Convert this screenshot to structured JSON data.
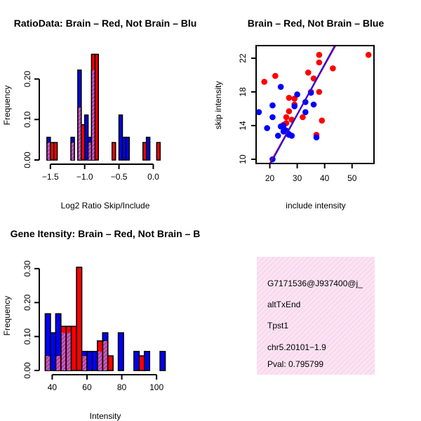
{
  "colors": {
    "red": "#ff0000",
    "blue": "#0000ff",
    "purple": "#9a1fc0",
    "line": "#5a18c8",
    "info_bg": "#f8dcf0",
    "pval": "#aa0000"
  },
  "chart_data": [
    {
      "type": "bar",
      "title": "RatioData: Brain – Red, Not Brain – Blu",
      "xlabel": "Log2 Ratio Skip/Include",
      "ylabel": "Frequency",
      "xlim": [
        -1.6,
        0.2
      ],
      "ylim": [
        0,
        0.26
      ],
      "xticks": [
        -1.5,
        -1.0,
        -0.5,
        0.0
      ],
      "xtick_labels": [
        "−1.5",
        "−1.0",
        "−0.5",
        "0.0"
      ],
      "yticks": [
        0.0,
        0.1,
        0.2
      ],
      "ytick_labels": [
        "0.00",
        "0.10",
        "0.20"
      ],
      "bin_width": 0.05,
      "series": [
        {
          "name": "Not Brain",
          "color": "blue",
          "bins": [
            [
              -1.55,
              0.056
            ],
            [
              -1.2,
              0.056
            ],
            [
              -1.1,
              0.222
            ],
            [
              -1.0,
              0.111
            ],
            [
              -0.95,
              0.056
            ],
            [
              -0.9,
              0.222
            ],
            [
              -0.5,
              0.111
            ],
            [
              -0.45,
              0.056
            ],
            [
              -0.4,
              0.056
            ],
            [
              -0.1,
              0.056
            ]
          ]
        },
        {
          "name": "Brain",
          "color": "red",
          "bins": [
            [
              -1.55,
              0.043
            ],
            [
              -1.5,
              0.043
            ],
            [
              -1.45,
              0.043
            ],
            [
              -1.2,
              0.043
            ],
            [
              -1.1,
              0.13
            ],
            [
              -1.05,
              0.087
            ],
            [
              -0.95,
              0.043
            ],
            [
              -0.9,
              0.261
            ],
            [
              -0.85,
              0.261
            ],
            [
              -0.6,
              0.043
            ],
            [
              -0.15,
              0.043
            ],
            [
              0.05,
              0.043
            ]
          ]
        }
      ]
    },
    {
      "type": "scatter",
      "title": "Brain – Red, Not Brain – Blue",
      "xlabel": "include intensity",
      "ylabel": "skip intensity",
      "xlim": [
        15,
        58
      ],
      "ylim": [
        9.5,
        23.5
      ],
      "xticks": [
        20,
        30,
        40,
        50
      ],
      "yticks": [
        10,
        14,
        18,
        22
      ],
      "series": [
        {
          "name": "Brain",
          "color": "red",
          "points": [
            [
              18,
              19.2
            ],
            [
              22,
              19.9
            ],
            [
              25,
              14.1
            ],
            [
              25,
              13.7
            ],
            [
              26,
              15.0
            ],
            [
              26,
              14.3
            ],
            [
              27,
              15.7
            ],
            [
              27,
              17.3
            ],
            [
              28,
              14.7
            ],
            [
              29,
              17.2
            ],
            [
              29,
              16.5
            ],
            [
              32,
              15.0
            ],
            [
              34,
              20.3
            ],
            [
              35,
              18.0
            ],
            [
              36,
              19.6
            ],
            [
              37,
              12.9
            ],
            [
              38,
              22.4
            ],
            [
              38,
              21.5
            ],
            [
              38,
              18.0
            ],
            [
              39,
              14.6
            ],
            [
              43,
              20.8
            ],
            [
              56,
              22.4
            ]
          ]
        },
        {
          "name": "Not Brain",
          "color": "blue",
          "points": [
            [
              16,
              15.6
            ],
            [
              19,
              13.7
            ],
            [
              21,
              10.0
            ],
            [
              21,
              16.4
            ],
            [
              21,
              15.0
            ],
            [
              23,
              12.8
            ],
            [
              24,
              18.6
            ],
            [
              24,
              13.9
            ],
            [
              25,
              13.3
            ],
            [
              25,
              14.0
            ],
            [
              26,
              13.4
            ],
            [
              27,
              13.0
            ],
            [
              27,
              12.9
            ],
            [
              28,
              12.8
            ],
            [
              29,
              16.3
            ],
            [
              30,
              17.7
            ],
            [
              33,
              15.6
            ],
            [
              33,
              16.8
            ],
            [
              35,
              17.9
            ],
            [
              36,
              16.5
            ],
            [
              37,
              12.6
            ]
          ]
        }
      ],
      "fit_lines": [
        {
          "name": "Brain",
          "color": "red",
          "from": [
            20,
            9.5
          ],
          "to": [
            44,
            23.5
          ]
        },
        {
          "name": "Not Brain",
          "color": "blue",
          "from": [
            20.3,
            9.5
          ],
          "to": [
            43.7,
            23.5
          ]
        }
      ]
    },
    {
      "type": "bar",
      "title": "Gene Itensity: Brain – Red, Not Brain – B",
      "xlabel": "Intensity",
      "ylabel": "Frequency",
      "xlim": [
        35,
        106
      ],
      "ylim": [
        0,
        0.31
      ],
      "xticks": [
        40,
        60,
        80,
        100
      ],
      "yticks": [
        0.0,
        0.1,
        0.2,
        0.3
      ],
      "ytick_labels": [
        "0.00",
        "0.10",
        "0.20",
        "0.30"
      ],
      "bin_width": 3,
      "series": [
        {
          "name": "Not Brain",
          "color": "blue",
          "bins": [
            [
              36,
              0.167
            ],
            [
              39,
              0.111
            ],
            [
              42,
              0.167
            ],
            [
              45,
              0.111
            ],
            [
              48,
              0.111
            ],
            [
              57,
              0.056
            ],
            [
              60,
              0.056
            ],
            [
              63,
              0.056
            ],
            [
              66,
              0.056
            ],
            [
              69,
              0.111
            ],
            [
              78,
              0.111
            ],
            [
              87,
              0.056
            ],
            [
              93,
              0.056
            ],
            [
              102,
              0.056
            ]
          ]
        },
        {
          "name": "Brain",
          "color": "red",
          "bins": [
            [
              36,
              0.043
            ],
            [
              42,
              0.043
            ],
            [
              45,
              0.13
            ],
            [
              48,
              0.13
            ],
            [
              51,
              0.13
            ],
            [
              54,
              0.304
            ],
            [
              57,
              0.043
            ],
            [
              66,
              0.087
            ],
            [
              69,
              0.087
            ],
            [
              72,
              0.043
            ],
            [
              90,
              0.043
            ]
          ]
        }
      ]
    }
  ],
  "info": {
    "id": "G7171536@J937400@j_",
    "event": "altTxEnd",
    "gene": "Tpst1",
    "location": "chr5.20101−1.9",
    "pval": "Pval: 0.795799"
  }
}
